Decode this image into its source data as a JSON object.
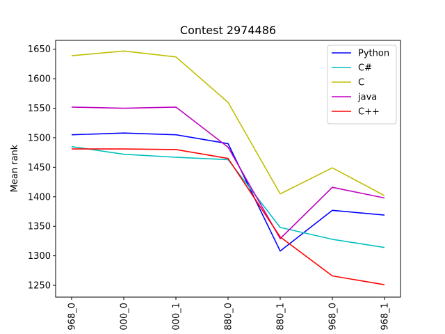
{
  "chart_data": {
    "type": "line",
    "title": "Contest 2974486",
    "xlabel": "",
    "ylabel": "Mean rank",
    "categories": [
      "968_0",
      "000_0",
      "000_1",
      "880_0",
      "880_1",
      "968_0",
      "968_1"
    ],
    "ylim": [
      1230,
      1665
    ],
    "yticks": [
      1250,
      1300,
      1350,
      1400,
      1450,
      1500,
      1550,
      1600,
      1650
    ],
    "grid": false,
    "legend_position": "top-right",
    "series": [
      {
        "name": "Python",
        "color": "#0000ff",
        "values": [
          1505,
          1508,
          1505,
          1490,
          1308,
          1377,
          1369
        ]
      },
      {
        "name": "C#",
        "color": "#00bfbf",
        "values": [
          1485,
          1472,
          1467,
          1463,
          1348,
          1328,
          1314
        ]
      },
      {
        "name": "C",
        "color": "#bfbf00",
        "values": [
          1639,
          1647,
          1637,
          1560,
          1405,
          1449,
          1402
        ]
      },
      {
        "name": "java",
        "color": "#bf00bf",
        "values": [
          1552,
          1550,
          1552,
          1484,
          1329,
          1416,
          1398
        ]
      },
      {
        "name": "C++",
        "color": "#ff0000",
        "values": [
          1481,
          1481,
          1480,
          1465,
          1332,
          1266,
          1251
        ]
      }
    ]
  }
}
